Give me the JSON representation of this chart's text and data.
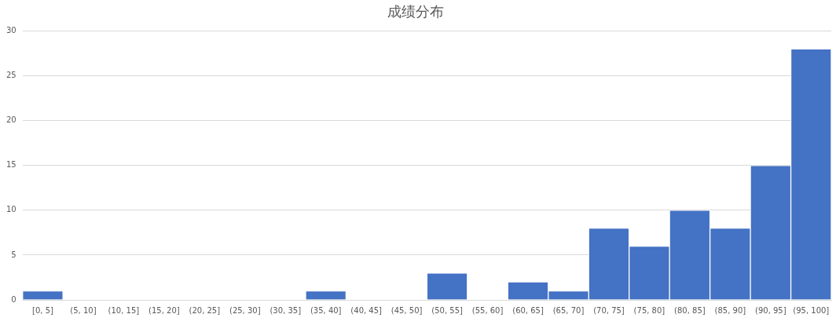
{
  "chart_data": {
    "type": "bar",
    "title": "成绩分布",
    "categories": [
      "[0, 5]",
      "(5, 10]",
      "(10, 15]",
      "(15, 20]",
      "(20, 25]",
      "(25, 30]",
      "(30, 35]",
      "(35, 40]",
      "(40, 45]",
      "(45, 50]",
      "(50, 55]",
      "(55, 60]",
      "(60, 65]",
      "(65, 70]",
      "(70, 75]",
      "(75, 80]",
      "(80, 85]",
      "(85, 90]",
      "(90, 95]",
      "(95, 100]"
    ],
    "values": [
      1,
      0,
      0,
      0,
      0,
      0,
      0,
      1,
      0,
      0,
      3,
      0,
      2,
      1,
      8,
      6,
      10,
      8,
      15,
      28
    ],
    "color": "#4472c4",
    "ylim": [
      0,
      30
    ],
    "yticks": [
      0,
      5,
      10,
      15,
      20,
      25,
      30
    ],
    "grid": "y"
  }
}
